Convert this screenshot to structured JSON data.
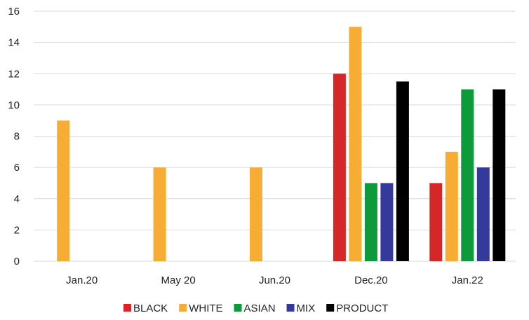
{
  "chart_data": {
    "type": "bar",
    "categories": [
      "Jan.20",
      "May 20",
      "Jun.20",
      "Dec.20",
      "Jan.22"
    ],
    "series": [
      {
        "name": "BLACK",
        "color": "#d62728",
        "values": [
          null,
          null,
          null,
          12,
          5
        ]
      },
      {
        "name": "WHITE",
        "color": "#f7ad33",
        "values": [
          9,
          6,
          6,
          15,
          7
        ]
      },
      {
        "name": "ASIAN",
        "color": "#0c9a3a",
        "values": [
          null,
          null,
          null,
          5,
          11
        ]
      },
      {
        "name": "MIX",
        "color": "#333a9b",
        "values": [
          null,
          null,
          null,
          5,
          6
        ]
      },
      {
        "name": "PRODUCT",
        "color": "#000000",
        "values": [
          null,
          null,
          null,
          11.5,
          11
        ]
      }
    ],
    "ylim": [
      0,
      16
    ],
    "yticks": [
      "0",
      "2",
      "4",
      "6",
      "8",
      "10",
      "12",
      "14",
      "16"
    ],
    "grid": true,
    "legend_position": "bottom",
    "title": "",
    "xlabel": "",
    "ylabel": ""
  }
}
